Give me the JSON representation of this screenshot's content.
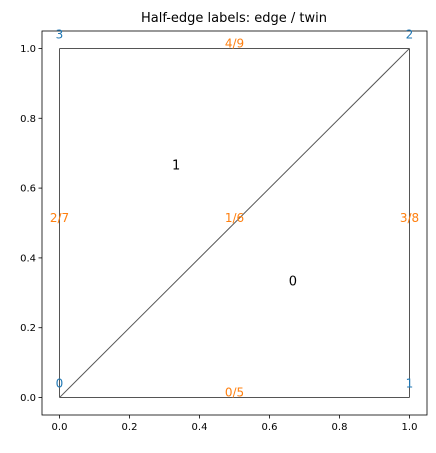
{
  "chart_data": {
    "type": "mesh",
    "title": "Half-edge labels: edge / twin",
    "xlim": [
      -0.05,
      1.05
    ],
    "ylim": [
      -0.05,
      1.05
    ],
    "xticks": [
      {
        "value": 0,
        "label": "0.0"
      },
      {
        "value": 0.2,
        "label": "0.2"
      },
      {
        "value": 0.4,
        "label": "0.4"
      },
      {
        "value": 0.6,
        "label": "0.6"
      },
      {
        "value": 0.8,
        "label": "0.8"
      },
      {
        "value": 1,
        "label": "1.0"
      }
    ],
    "yticks": [
      {
        "value": 0,
        "label": "0.0"
      },
      {
        "value": 0.2,
        "label": "0.2"
      },
      {
        "value": 0.4,
        "label": "0.4"
      },
      {
        "value": 0.6,
        "label": "0.6"
      },
      {
        "value": 0.8,
        "label": "0.8"
      },
      {
        "value": 1,
        "label": "1.0"
      }
    ],
    "vertex_color": "#1f77b4",
    "edge_color": "#555555",
    "edge_label_color": "#ff7f0e",
    "face_label_color": "#000000",
    "vertices": [
      {
        "label": "0",
        "x": 0,
        "y": 0
      },
      {
        "label": "1",
        "x": 1,
        "y": 0
      },
      {
        "label": "2",
        "x": 1,
        "y": 1
      },
      {
        "label": "3",
        "x": 0,
        "y": 1
      }
    ],
    "edges": [
      {
        "label": "0/5",
        "vertices": [
          0,
          1
        ]
      },
      {
        "label": "3/8",
        "vertices": [
          1,
          2
        ]
      },
      {
        "label": "4/9",
        "vertices": [
          2,
          3
        ]
      },
      {
        "label": "2/7",
        "vertices": [
          3,
          0
        ]
      },
      {
        "label": "1/6",
        "vertices": [
          0,
          2
        ]
      }
    ],
    "faces": [
      {
        "label": "0",
        "vertices": [
          0,
          1,
          2
        ]
      },
      {
        "label": "1",
        "vertices": [
          0,
          2,
          3
        ]
      }
    ]
  }
}
